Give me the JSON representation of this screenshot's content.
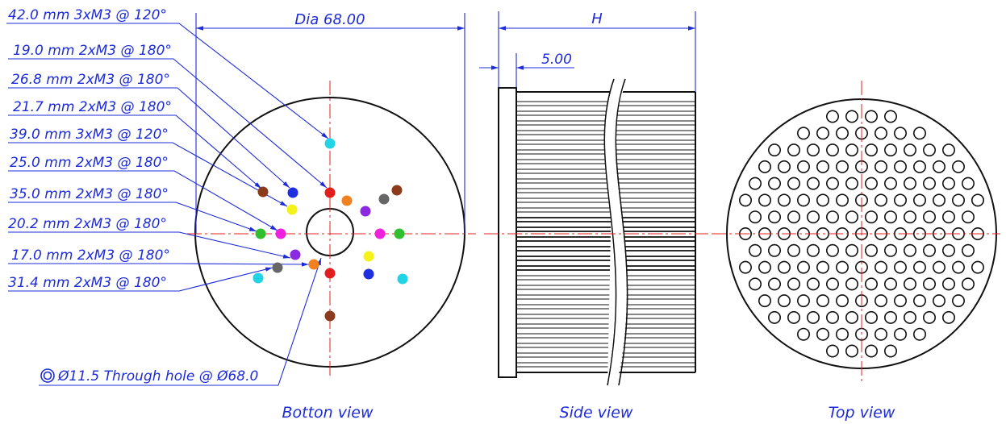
{
  "bottom_view": {
    "caption": "Botton view",
    "diameter_label": "Dia 68.00",
    "through_hole_label": "Ø11.5 Through hole @ Ø68.0",
    "hole_callouts": [
      "42.0 mm 3xM3 @ 120°",
      "19.0 mm 2xM3 @ 180°",
      "26.8 mm 2xM3 @ 180°",
      "21.7 mm 2xM3 @ 180°",
      "39.0 mm 3xM3 @ 120°",
      "25.0 mm 2xM3 @ 180°",
      "35.0 mm 2xM3 @ 180°",
      "20.2 mm 2xM3 @ 180°",
      "17.0 mm 2xM3 @ 180°",
      "31.4 mm 2xM3 @ 180°"
    ],
    "hole_colors": {
      "cyan": "#22d3e6",
      "blue": "#1f2fe0",
      "red": "#e11d1d",
      "brown": "#8b3a1a",
      "yellow": "#f5f11a",
      "orange": "#f08020",
      "purple": "#8a2be2",
      "gray": "#666666",
      "green": "#2fbf2f",
      "magenta": "#ee22dd"
    }
  },
  "side_view": {
    "caption": "Side view",
    "height_label": "H",
    "base_label": "5.00"
  },
  "top_view": {
    "caption": "Top view"
  },
  "colors": {
    "annotation": "#1d2bd8",
    "centerline": "#e52222",
    "outline": "#111111"
  }
}
